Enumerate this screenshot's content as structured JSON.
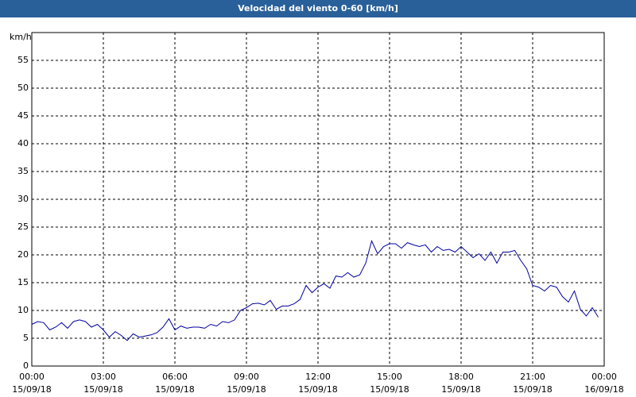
{
  "chart_data": {
    "type": "line",
    "title": "Velocidad del viento 0-60 [km/h]",
    "y_label": "km/h",
    "x": [
      0,
      0.25,
      0.5,
      0.75,
      1,
      1.25,
      1.5,
      1.75,
      2,
      2.25,
      2.5,
      2.75,
      3,
      3.25,
      3.5,
      3.75,
      4,
      4.25,
      4.5,
      4.75,
      5,
      5.25,
      5.5,
      5.75,
      6,
      6.25,
      6.5,
      6.75,
      7,
      7.25,
      7.5,
      7.75,
      8,
      8.25,
      8.5,
      8.75,
      9,
      9.25,
      9.5,
      9.75,
      10,
      10.25,
      10.5,
      10.75,
      11,
      11.25,
      11.5,
      11.75,
      12,
      12.25,
      12.5,
      12.75,
      13,
      13.25,
      13.5,
      13.75,
      14,
      14.25,
      14.5,
      14.75,
      15,
      15.25,
      15.5,
      15.75,
      16,
      16.25,
      16.5,
      16.75,
      17,
      17.25,
      17.5,
      17.75,
      18,
      18.25,
      18.5,
      18.75,
      19,
      19.25,
      19.5,
      19.75,
      20,
      20.25,
      20.5,
      20.75,
      21,
      21.25,
      21.5,
      21.75,
      22,
      22.25,
      22.5,
      22.75,
      23,
      23.25,
      23.5,
      23.75
    ],
    "series": [
      {
        "name": "Velocidad del viento",
        "color": "#0000a0",
        "values": [
          7.5,
          8,
          7.8,
          6.5,
          7,
          7.8,
          6.8,
          8,
          8.3,
          8,
          7,
          7.5,
          6.5,
          5.2,
          6.2,
          5.5,
          4.6,
          5.8,
          5.2,
          5.4,
          5.6,
          6,
          7,
          8.5,
          6.5,
          7.2,
          6.8,
          7,
          7,
          6.8,
          7.5,
          7.2,
          8,
          7.8,
          8.3,
          10,
          10.5,
          11.2,
          11.3,
          11,
          11.8,
          10.2,
          10.8,
          10.8,
          11.2,
          12,
          14.5,
          13.2,
          14.2,
          14.8,
          14,
          16.2,
          16,
          16.8,
          16,
          16.4,
          18.5,
          22.5,
          20.2,
          21.5,
          22,
          22,
          21.2,
          22.2,
          21.8,
          21.5,
          21.8,
          20.5,
          21.5,
          20.8,
          21,
          20.5,
          21.5,
          20.5,
          19.5,
          20.2,
          19,
          20.5,
          18.5,
          20.5,
          20.5,
          20.8,
          19,
          17.5,
          14.5,
          14.2,
          13.5,
          14.5,
          14.2,
          12.5,
          11.5,
          13.5,
          10.2,
          9,
          10.5,
          8.8
        ]
      }
    ],
    "xlim": [
      0,
      24
    ],
    "xticks": [
      {
        "value": 0,
        "label": "00:00",
        "date": "15/09/18"
      },
      {
        "value": 3,
        "label": "03:00",
        "date": "15/09/18"
      },
      {
        "value": 6,
        "label": "06:00",
        "date": "15/09/18"
      },
      {
        "value": 9,
        "label": "09:00",
        "date": "15/09/18"
      },
      {
        "value": 12,
        "label": "12:00",
        "date": "15/09/18"
      },
      {
        "value": 15,
        "label": "15:00",
        "date": "15/09/18"
      },
      {
        "value": 18,
        "label": "18:00",
        "date": "15/09/18"
      },
      {
        "value": 21,
        "label": "21:00",
        "date": "15/09/18"
      },
      {
        "value": 24,
        "label": "00:00",
        "date": "16/09/18"
      }
    ],
    "ylim": [
      0,
      60
    ],
    "yticks": [
      0,
      5,
      10,
      15,
      20,
      25,
      30,
      35,
      40,
      45,
      50,
      55
    ],
    "grid": true
  }
}
